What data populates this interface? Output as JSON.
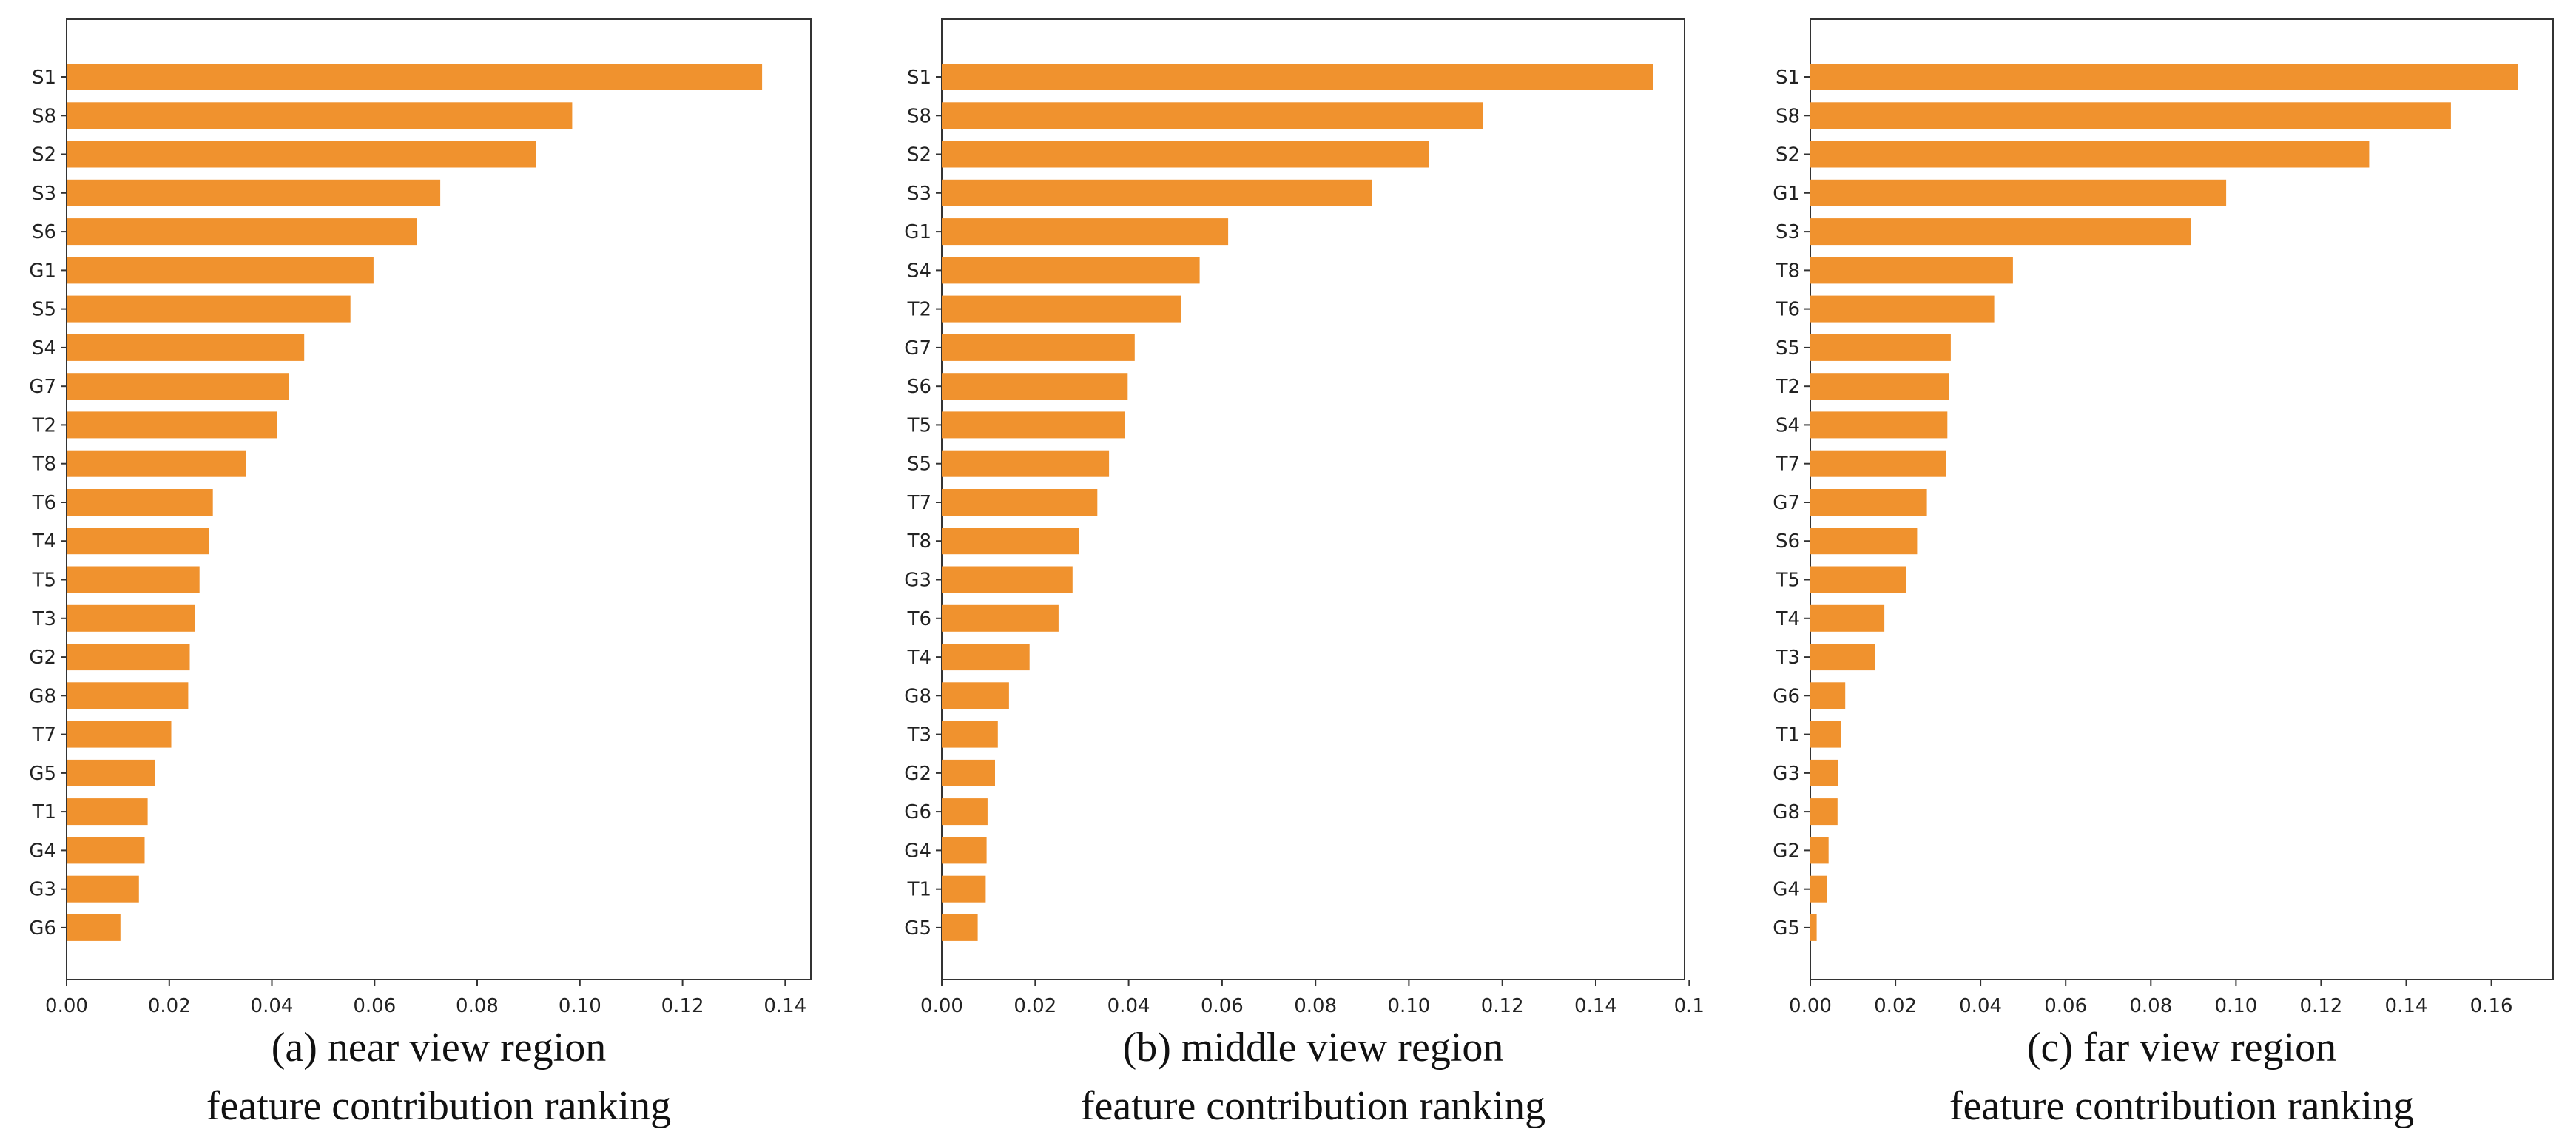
{
  "figure": {
    "bar_color": "#F0922E",
    "axis_color": "#333333"
  },
  "chart_data": [
    {
      "type": "bar",
      "orientation": "horizontal",
      "title": "",
      "caption_line1": "(a) near view region",
      "caption_line2": "feature contribution ranking",
      "xlabel": "",
      "ylabel": "",
      "xlim": [
        0,
        0.145
      ],
      "xticks": [
        "0.00",
        "0.02",
        "0.04",
        "0.06",
        "0.08",
        "0.10",
        "0.12",
        "0.14"
      ],
      "categories": [
        "S1",
        "S8",
        "S2",
        "S3",
        "S6",
        "G1",
        "S5",
        "S4",
        "G7",
        "T2",
        "T8",
        "T6",
        "T4",
        "T5",
        "T3",
        "G2",
        "G8",
        "T7",
        "G5",
        "T1",
        "G4",
        "G3",
        "G6"
      ],
      "values": [
        0.1355,
        0.0985,
        0.0915,
        0.0728,
        0.0683,
        0.0598,
        0.0553,
        0.0463,
        0.0433,
        0.041,
        0.0349,
        0.0285,
        0.0278,
        0.0259,
        0.025,
        0.024,
        0.0237,
        0.0204,
        0.0172,
        0.0158,
        0.0152,
        0.0141,
        0.0105
      ]
    },
    {
      "type": "bar",
      "orientation": "horizontal",
      "title": "",
      "caption_line1": "(b) middle view region",
      "caption_line2": "feature contribution ranking",
      "xlabel": "",
      "ylabel": "",
      "xlim": [
        0,
        0.159
      ],
      "xticks": [
        "0.00",
        "0.02",
        "0.04",
        "0.06",
        "0.08",
        "0.10",
        "0.12",
        "0.14",
        "0.1"
      ],
      "categories": [
        "S1",
        "S8",
        "S2",
        "S3",
        "G1",
        "S4",
        "T2",
        "G7",
        "S6",
        "T5",
        "S5",
        "T7",
        "T8",
        "G3",
        "T6",
        "T4",
        "G8",
        "T3",
        "G2",
        "G6",
        "G4",
        "T1",
        "G5"
      ],
      "values": [
        0.1523,
        0.1158,
        0.1042,
        0.0921,
        0.0613,
        0.0552,
        0.0512,
        0.0413,
        0.0398,
        0.0392,
        0.0358,
        0.0333,
        0.0294,
        0.028,
        0.025,
        0.0188,
        0.0144,
        0.012,
        0.0114,
        0.0098,
        0.0096,
        0.0094,
        0.0077
      ]
    },
    {
      "type": "bar",
      "orientation": "horizontal",
      "title": "",
      "caption_line1": "(c) far view region",
      "caption_line2": "feature contribution ranking",
      "xlabel": "",
      "ylabel": "",
      "xlim": [
        0,
        0.1745
      ],
      "xticks": [
        "0.00",
        "0.02",
        "0.04",
        "0.06",
        "0.08",
        "0.10",
        "0.12",
        "0.14",
        "0.16"
      ],
      "categories": [
        "S1",
        "S8",
        "S2",
        "G1",
        "S3",
        "T8",
        "T6",
        "S5",
        "T2",
        "S4",
        "T7",
        "G7",
        "S6",
        "T5",
        "T4",
        "T3",
        "G6",
        "T1",
        "G3",
        "G8",
        "G2",
        "G4",
        "G5"
      ],
      "values": [
        0.1663,
        0.1505,
        0.1313,
        0.0977,
        0.0895,
        0.0476,
        0.0432,
        0.033,
        0.0325,
        0.0322,
        0.0318,
        0.0274,
        0.0251,
        0.0226,
        0.0174,
        0.0152,
        0.0082,
        0.0072,
        0.0066,
        0.0064,
        0.0043,
        0.004,
        0.0015
      ]
    }
  ]
}
